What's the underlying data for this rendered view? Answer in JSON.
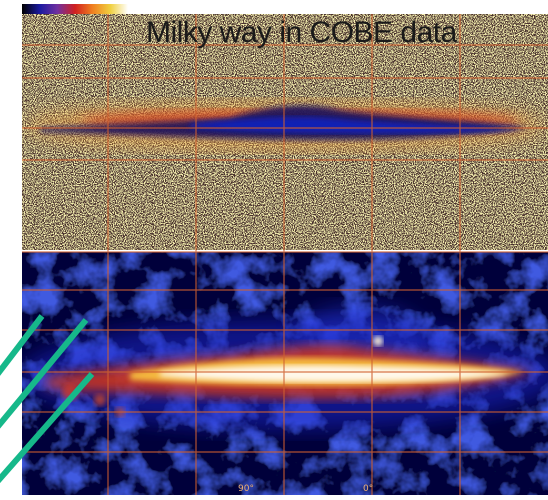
{
  "title": "Milky way in COBE data",
  "bottom_tick_labels": [
    "90°",
    "0°"
  ],
  "colors": {
    "background": "#ffffff",
    "upper_field": "#f6efb0",
    "lower_field": "#0a0a4a",
    "grid_lines": "#d06030",
    "plane_hot": "#fff6e0",
    "plane_warm": "#e85020",
    "plane_cool": "#1020c0",
    "annotation_lines": "#16b88a"
  },
  "colorbar": [
    "#000000",
    "#1a1aa0",
    "#7030a0",
    "#d02020",
    "#f08020",
    "#f0d040",
    "#ffffff"
  ],
  "panels": [
    "upper-map",
    "lower-map"
  ]
}
